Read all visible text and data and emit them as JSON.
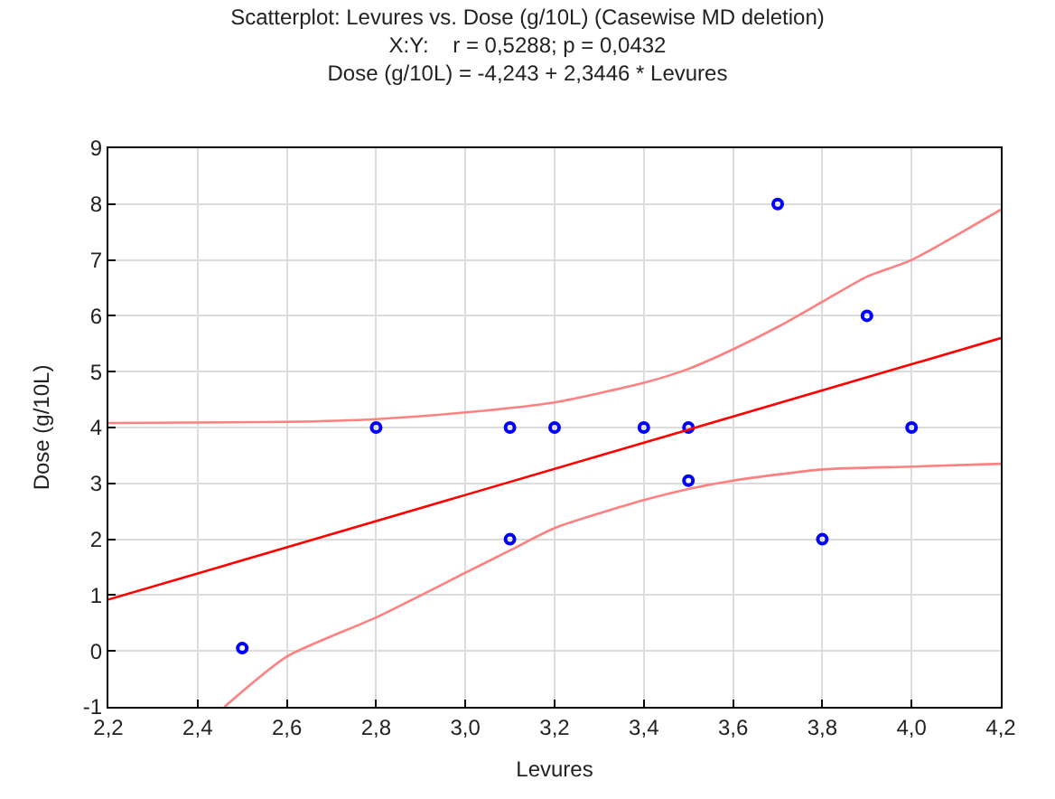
{
  "chart_data": {
    "type": "scatter",
    "title": "Scatterplot: Levures vs. Dose (g/10L) (Casewise MD deletion)",
    "subtitle": "X:Y:    r = 0,5288; p = 0,0432",
    "annotations": [
      "Dose (g/10L) = -4,243 + 2,3446 * Levures"
    ],
    "xlabel": "Levures",
    "ylabel": "Dose (g/10L)",
    "xlim": [
      2.2,
      4.2
    ],
    "xticks": [
      {
        "value": 2.2,
        "label": "2,2"
      },
      {
        "value": 2.4,
        "label": "2,4"
      },
      {
        "value": 2.6,
        "label": "2,6"
      },
      {
        "value": 2.8,
        "label": "2,8"
      },
      {
        "value": 3.0,
        "label": "3,0"
      },
      {
        "value": 3.2,
        "label": "3,2"
      },
      {
        "value": 3.4,
        "label": "3,4"
      },
      {
        "value": 3.6,
        "label": "3,6"
      },
      {
        "value": 3.8,
        "label": "3,8"
      },
      {
        "value": 4.0,
        "label": "4,0"
      },
      {
        "value": 4.2,
        "label": "4,2"
      }
    ],
    "ylim": [
      -1,
      9
    ],
    "yticks": [
      -1,
      0,
      1,
      2,
      3,
      4,
      5,
      6,
      7,
      8,
      9
    ],
    "grid": true,
    "series": [
      {
        "marker": "circle",
        "color": "#0000ff",
        "x": [
          2.5,
          2.8,
          3.1,
          3.1,
          3.2,
          3.4,
          3.5,
          3.5,
          3.7,
          3.8,
          3.9,
          4.0
        ],
        "values": [
          0.05,
          4,
          4,
          2,
          4,
          4,
          4,
          3.05,
          8,
          2,
          6,
          4
        ]
      },
      {
        "type": "line",
        "marker": "none",
        "color": "#ff0000",
        "x": [
          2.2,
          4.2
        ],
        "values": [
          0.92,
          5.6
        ]
      },
      {
        "type": "line",
        "marker": "none",
        "color": "#ff8080",
        "x": [
          2.2,
          2.6,
          2.8,
          3.0,
          3.2,
          3.4,
          3.5,
          3.6,
          3.7,
          3.8,
          3.9,
          4.0,
          4.2
        ],
        "values": [
          4.08,
          4.1,
          4.15,
          4.27,
          4.45,
          4.8,
          5.05,
          5.4,
          5.8,
          6.25,
          6.7,
          7.0,
          7.9
        ]
      },
      {
        "type": "line",
        "marker": "none",
        "color": "#ff8080",
        "x": [
          2.46,
          2.6,
          2.8,
          3.0,
          3.1,
          3.2,
          3.4,
          3.5,
          3.6,
          3.8,
          4.0,
          4.2
        ],
        "values": [
          -1,
          -0.1,
          0.6,
          1.4,
          1.8,
          2.2,
          2.7,
          2.9,
          3.05,
          3.25,
          3.3,
          3.35
        ]
      }
    ]
  }
}
